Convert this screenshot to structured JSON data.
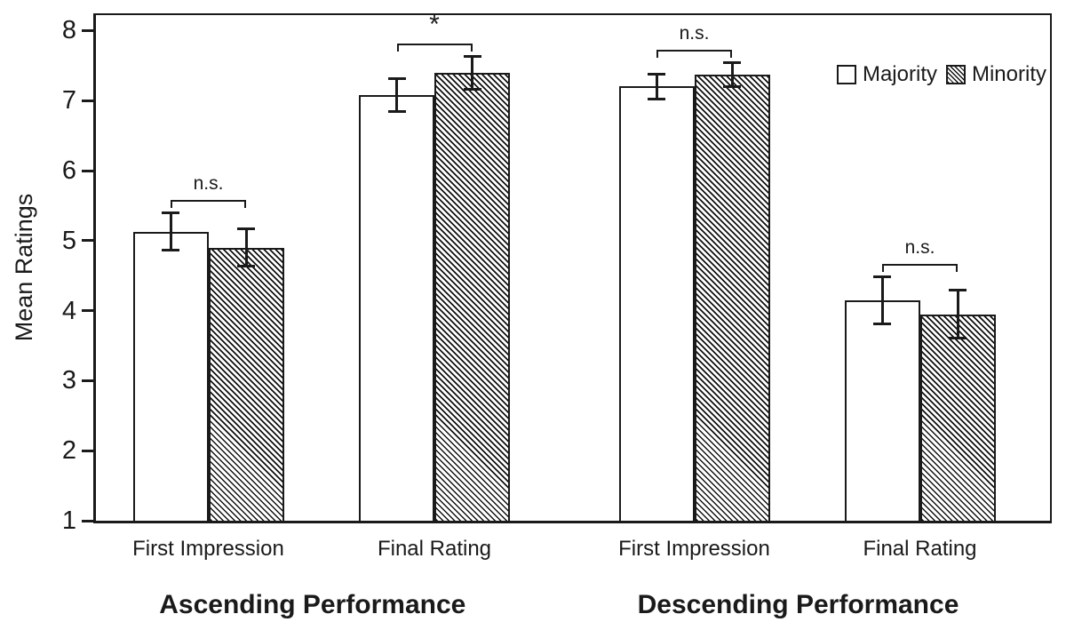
{
  "chart_data": {
    "type": "bar",
    "title": "",
    "ylabel": "Mean Ratings",
    "xlabel": "",
    "ylim": [
      1,
      8
    ],
    "yticks": [
      1,
      2,
      3,
      4,
      5,
      6,
      7,
      8
    ],
    "grid": false,
    "legend_position": "top-right-inside",
    "legend": [
      {
        "name": "Majority",
        "fill": "white"
      },
      {
        "name": "Minority",
        "fill": "hatch"
      }
    ],
    "significance_note_labels": {
      "not_significant": "n.s.",
      "significant": "*"
    },
    "panels": [
      {
        "label": "Ascending Performance",
        "groups": [
          {
            "category": "First Impression",
            "sig": "n.s.",
            "bars": [
              {
                "series": "Majority",
                "value": 5.13,
                "error": 0.27
              },
              {
                "series": "Minority",
                "value": 4.9,
                "error": 0.27
              }
            ]
          },
          {
            "category": "Final Rating",
            "sig": "*",
            "bars": [
              {
                "series": "Majority",
                "value": 7.08,
                "error": 0.24
              },
              {
                "series": "Minority",
                "value": 7.4,
                "error": 0.24
              }
            ]
          }
        ]
      },
      {
        "label": "Descending Performance",
        "groups": [
          {
            "category": "First Impression",
            "sig": "n.s.",
            "bars": [
              {
                "series": "Majority",
                "value": 7.2,
                "error": 0.18
              },
              {
                "series": "Minority",
                "value": 7.37,
                "error": 0.18
              }
            ]
          },
          {
            "category": "Final Rating",
            "sig": "n.s.",
            "bars": [
              {
                "series": "Majority",
                "value": 4.15,
                "error": 0.34
              },
              {
                "series": "Minority",
                "value": 3.95,
                "error": 0.35
              }
            ]
          }
        ]
      }
    ],
    "colors": {
      "axis": "#1a1a1a",
      "bar_border": "#1a1a1a",
      "bar_fill_majority": "#ffffff",
      "background": "#ffffff"
    }
  }
}
